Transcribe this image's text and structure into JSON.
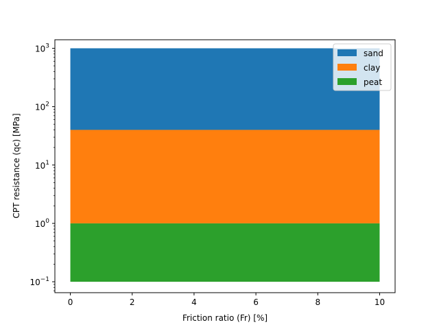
{
  "chart_data": {
    "type": "area",
    "xlabel": "Friction ratio (Fr) [%]",
    "ylabel": "CPT resistance (qc) [MPa]",
    "xlim": [
      -0.5,
      10.5
    ],
    "ylim": [
      0.065,
      1400
    ],
    "yscale": "log",
    "xticks": [
      0,
      2,
      4,
      6,
      8,
      10
    ],
    "xtick_labels": [
      "0",
      "2",
      "4",
      "6",
      "8",
      "10"
    ],
    "yticks": [
      0.1,
      1,
      10,
      100,
      1000
    ],
    "ytick_bases": [
      "10",
      "10",
      "10",
      "10",
      "10"
    ],
    "ytick_exponents": [
      "−1",
      "0",
      "1",
      "2",
      "3"
    ],
    "grid": false,
    "legend_position": "top-right",
    "series": [
      {
        "name": "sand",
        "x": [
          0,
          10
        ],
        "y_low": 40,
        "y_high": 1000,
        "color": "#1f77b4"
      },
      {
        "name": "clay",
        "x": [
          0,
          10
        ],
        "y_low": 1,
        "y_high": 40,
        "color": "#ff7f0e"
      },
      {
        "name": "peat",
        "x": [
          0,
          10
        ],
        "y_low": 0.1,
        "y_high": 1,
        "color": "#2ca02c"
      }
    ]
  }
}
